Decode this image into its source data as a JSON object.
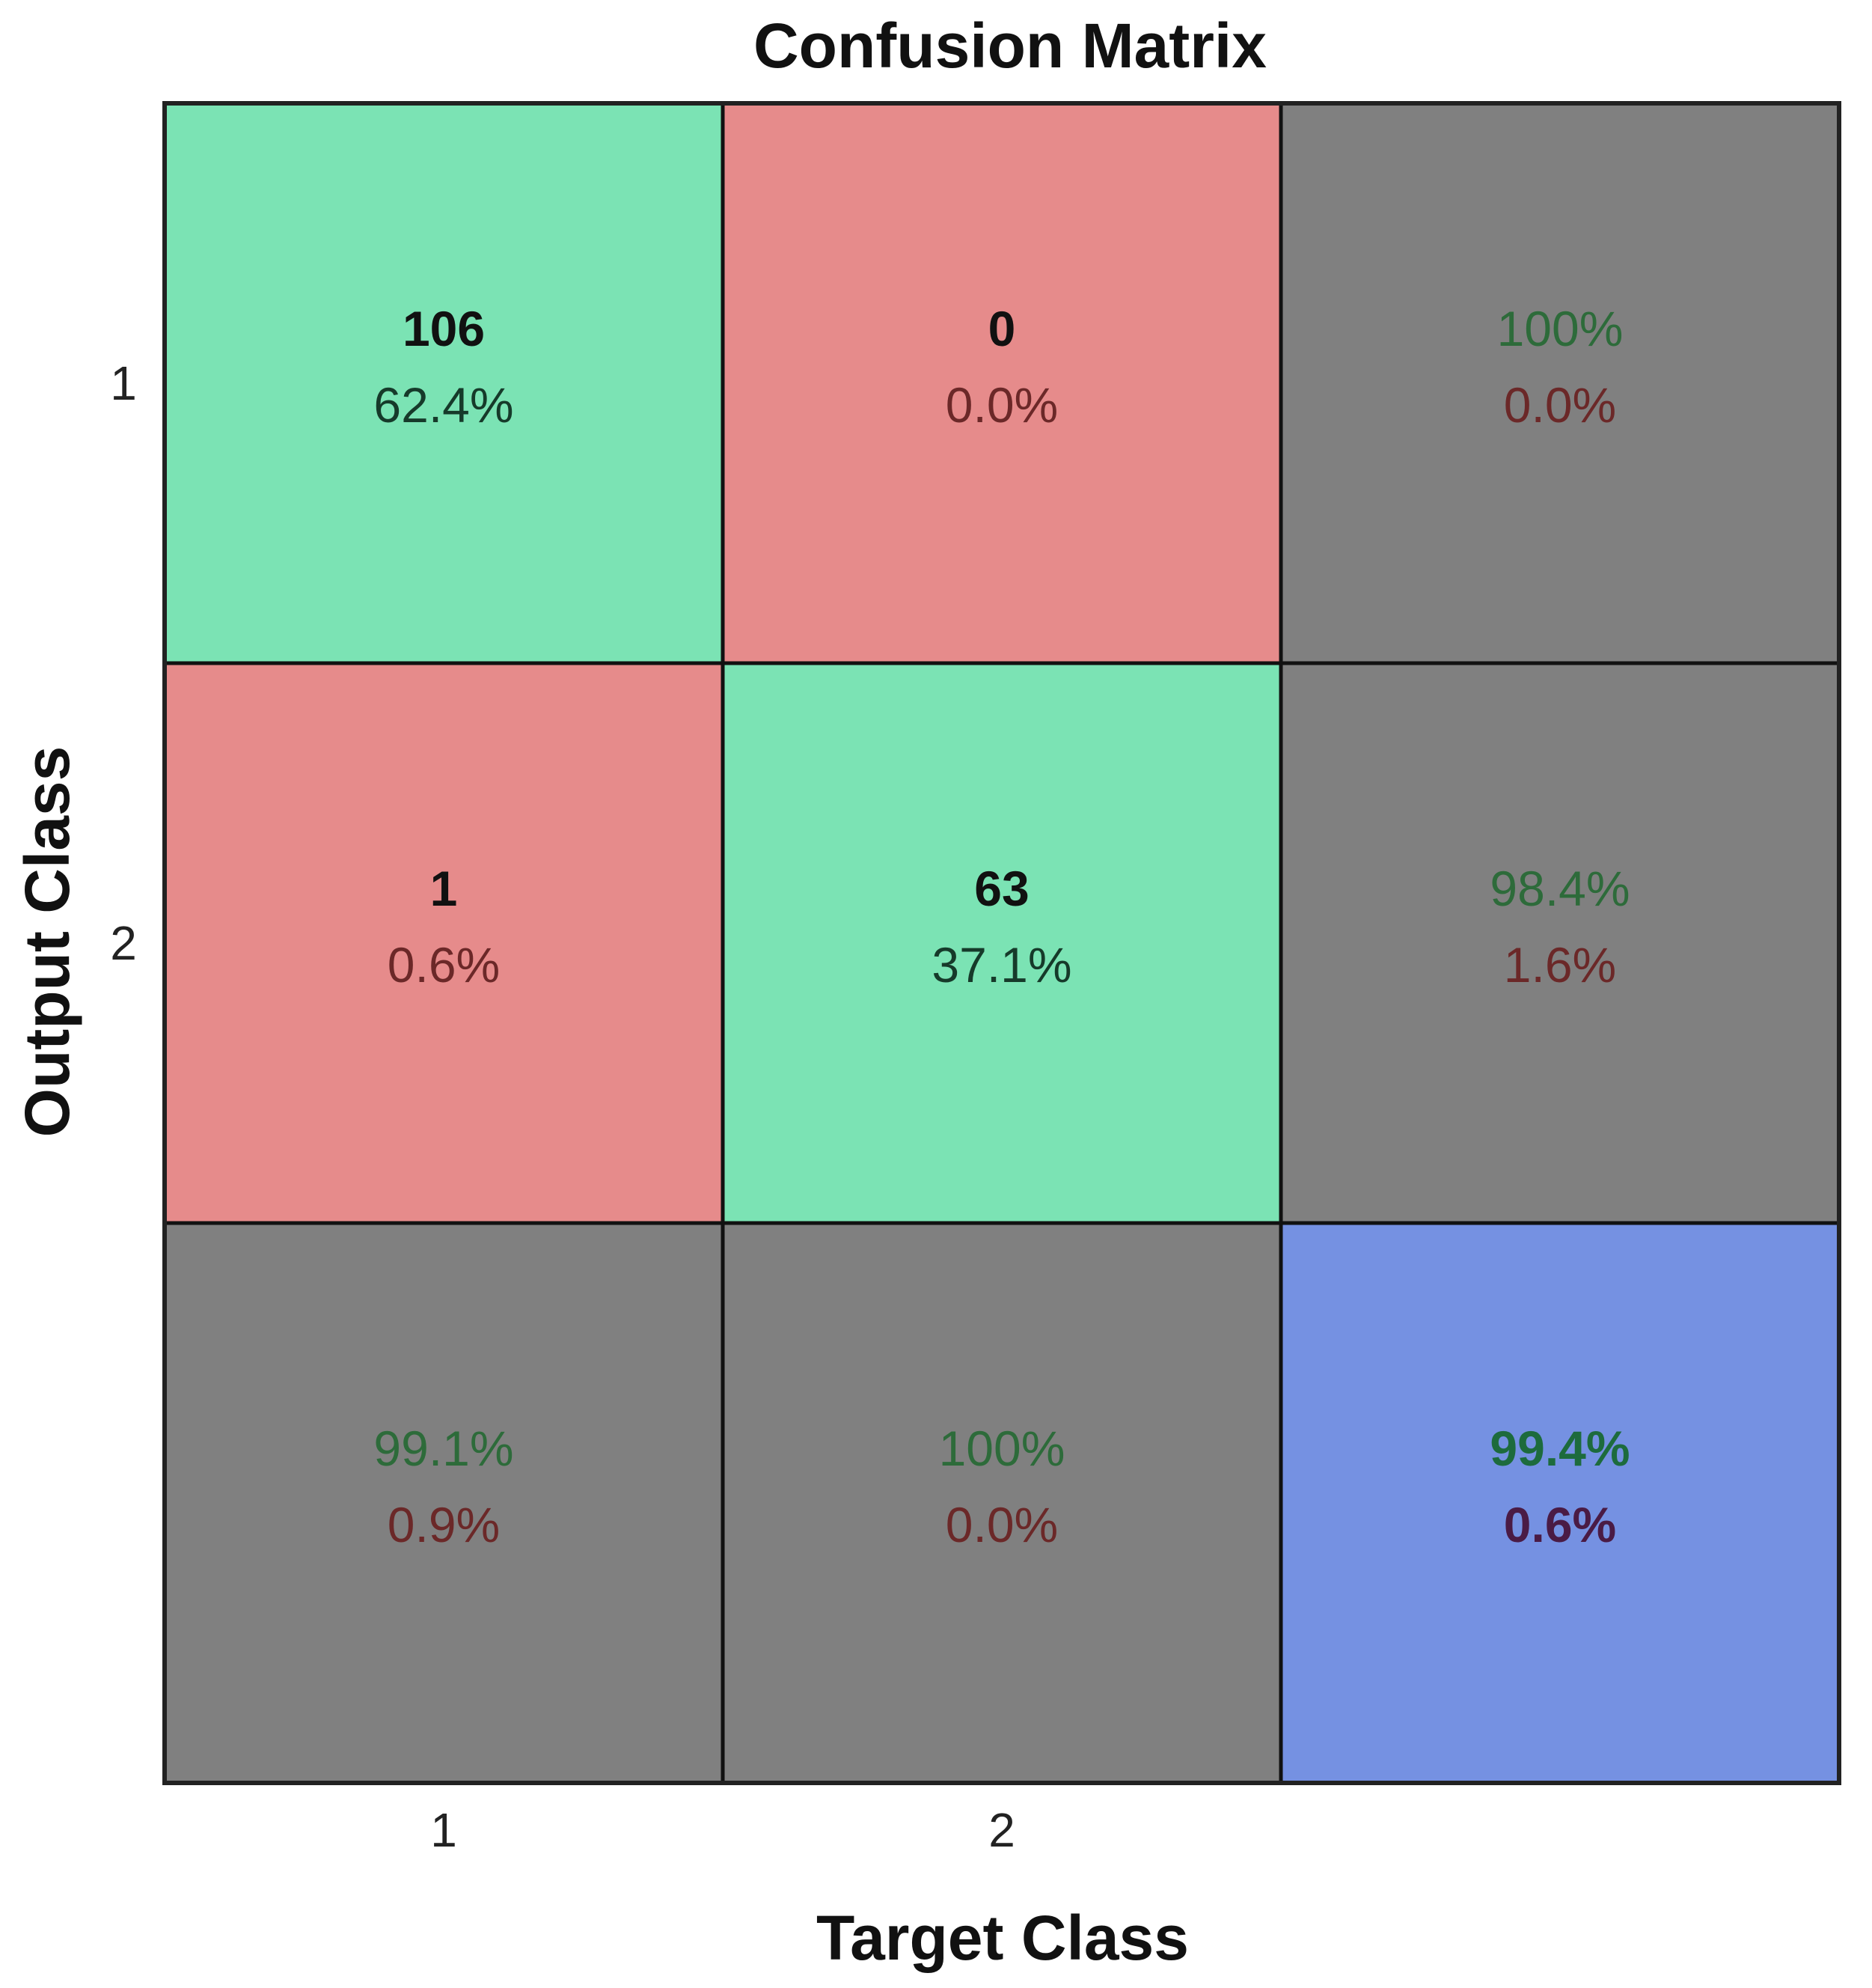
{
  "chart_data": {
    "type": "heatmap",
    "title": "Confusion Matrix",
    "xlabel": "Target Class",
    "ylabel": "Output Class",
    "x_tick_labels": [
      "1",
      "2",
      ""
    ],
    "y_tick_labels": [
      "1",
      "2",
      ""
    ],
    "colors": {
      "correct": "#7be3b4",
      "incorrect": "#e68b8b",
      "summary": "#808080",
      "overall": "#7591e2",
      "text_green": "#2d6b3a",
      "text_red": "#6b2828",
      "text_dark": "#111111"
    },
    "cells": [
      [
        {
          "kind": "correct",
          "count": "106",
          "percent": "62.4%"
        },
        {
          "kind": "incorrect",
          "count": "0",
          "percent": "0.0%"
        },
        {
          "kind": "summary",
          "good": "100%",
          "bad": "0.0%"
        }
      ],
      [
        {
          "kind": "incorrect",
          "count": "1",
          "percent": "0.6%"
        },
        {
          "kind": "correct",
          "count": "63",
          "percent": "37.1%"
        },
        {
          "kind": "summary",
          "good": "98.4%",
          "bad": "1.6%"
        }
      ],
      [
        {
          "kind": "summary",
          "good": "99.1%",
          "bad": "0.9%"
        },
        {
          "kind": "summary",
          "good": "100%",
          "bad": "0.0%"
        },
        {
          "kind": "overall",
          "good": "99.4%",
          "bad": "0.6%"
        }
      ]
    ]
  }
}
